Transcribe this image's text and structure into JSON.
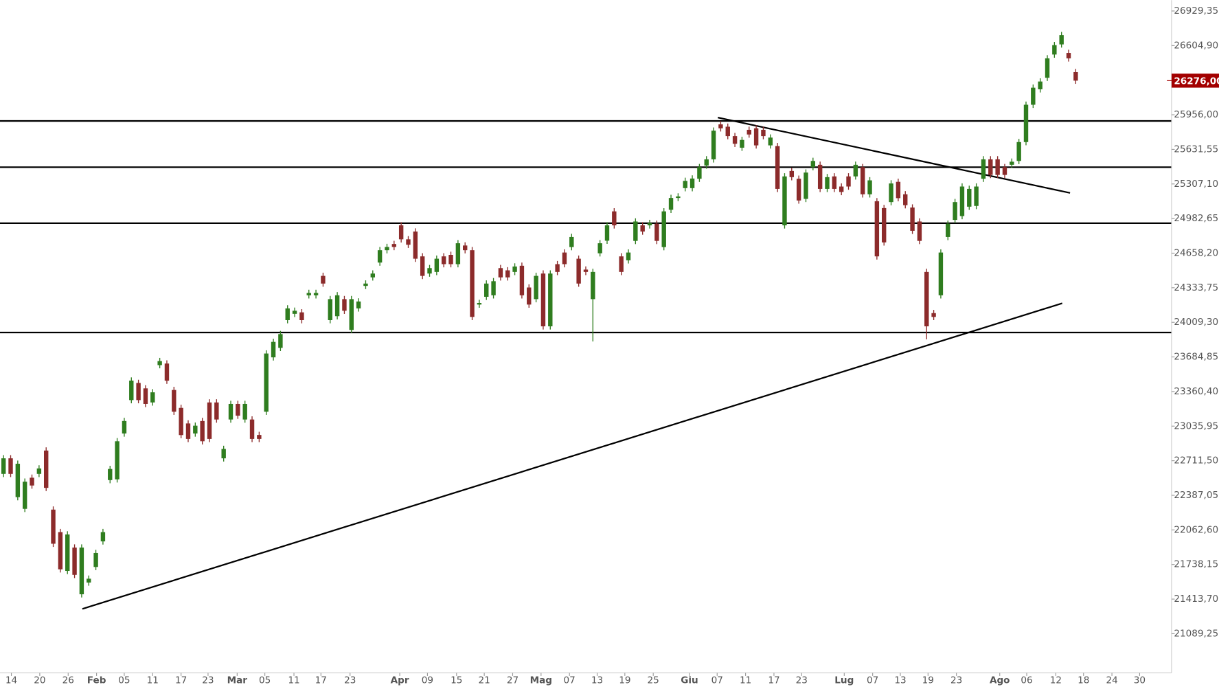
{
  "chart_data": {
    "type": "candlestick",
    "up_color": "#2f7d1f",
    "down_color": "#8c2b2b",
    "line_color": "#000000",
    "xlim": [
      -0.5,
      164.5
    ],
    "ylim": [
      20722,
      27031
    ],
    "xticks": [
      {
        "value": 1.1,
        "label": "14"
      },
      {
        "value": 5.1,
        "label": "20"
      },
      {
        "value": 9.1,
        "label": "26"
      },
      {
        "value": 13.1,
        "label": "Feb"
      },
      {
        "value": 17.0,
        "label": "05"
      },
      {
        "value": 21.0,
        "label": "11"
      },
      {
        "value": 25.0,
        "label": "17"
      },
      {
        "value": 28.8,
        "label": "23"
      },
      {
        "value": 32.9,
        "label": "Mar"
      },
      {
        "value": 36.8,
        "label": "05"
      },
      {
        "value": 40.9,
        "label": "11"
      },
      {
        "value": 44.7,
        "label": "17"
      },
      {
        "value": 48.8,
        "label": "23"
      },
      {
        "value": 55.8,
        "label": "Apr"
      },
      {
        "value": 59.7,
        "label": "09"
      },
      {
        "value": 63.8,
        "label": "15"
      },
      {
        "value": 67.7,
        "label": "21"
      },
      {
        "value": 71.7,
        "label": "27"
      },
      {
        "value": 75.7,
        "label": "Mag"
      },
      {
        "value": 79.7,
        "label": "07"
      },
      {
        "value": 83.6,
        "label": "13"
      },
      {
        "value": 87.5,
        "label": "19"
      },
      {
        "value": 91.5,
        "label": "25"
      },
      {
        "value": 96.6,
        "label": "Giu"
      },
      {
        "value": 100.5,
        "label": "07"
      },
      {
        "value": 104.5,
        "label": "11"
      },
      {
        "value": 108.5,
        "label": "17"
      },
      {
        "value": 112.4,
        "label": "23"
      },
      {
        "value": 118.4,
        "label": "Lug"
      },
      {
        "value": 122.4,
        "label": "07"
      },
      {
        "value": 126.3,
        "label": "13"
      },
      {
        "value": 130.2,
        "label": "19"
      },
      {
        "value": 134.2,
        "label": "23"
      },
      {
        "value": 140.3,
        "label": "Ago"
      },
      {
        "value": 144.1,
        "label": "06"
      },
      {
        "value": 148.2,
        "label": "12"
      },
      {
        "value": 152.1,
        "label": "18"
      },
      {
        "value": 156.1,
        "label": "24"
      },
      {
        "value": 160.0,
        "label": "30"
      }
    ],
    "yticks": [
      {
        "value": 26929.35,
        "label": "26929,35"
      },
      {
        "value": 26604.9,
        "label": "26604,90"
      },
      {
        "value": 25956,
        "label": "25956,00"
      },
      {
        "value": 25631.55,
        "label": "25631,55"
      },
      {
        "value": 25307.1,
        "label": "25307,10"
      },
      {
        "value": 24982.65,
        "label": "24982,65"
      },
      {
        "value": 24658.2,
        "label": "24658,20"
      },
      {
        "value": 24333.75,
        "label": "24333,75"
      },
      {
        "value": 24009.3,
        "label": "24009,30"
      },
      {
        "value": 23684.85,
        "label": "23684,85"
      },
      {
        "value": 23360.4,
        "label": "23360,40"
      },
      {
        "value": 23035.95,
        "label": "23035,95"
      },
      {
        "value": 22711.5,
        "label": "22711,50"
      },
      {
        "value": 22387.05,
        "label": "22387,05"
      },
      {
        "value": 22062.6,
        "label": "22062,60"
      },
      {
        "value": 21738.15,
        "label": "21738,15"
      },
      {
        "value": 21413.7,
        "label": "21413,70"
      },
      {
        "value": 21089.25,
        "label": "21089,25"
      }
    ],
    "last_price": {
      "value": 26276,
      "label": "26276,00",
      "color": "#a30000"
    },
    "hlines": [
      25898,
      25464,
      24939,
      23914
    ],
    "trendlines": [
      {
        "x": [
          11.1,
          149.1
        ],
        "y": [
          21322,
          24188
        ]
      },
      {
        "x": [
          100.6,
          150.2
        ],
        "y": [
          25930,
          25223
        ]
      }
    ],
    "open": [
      22588,
      22734,
      22370,
      22260,
      22552,
      22588,
      22807,
      22253,
      22042,
      21678,
      21897,
      21459,
      21569,
      21715,
      21955,
      22530,
      22537,
      22967,
      23280,
      23441,
      23390,
      23258,
      23608,
      23623,
      23375,
      23207,
      23061,
      22967,
      23084,
      23258,
      23258,
      22734,
      23098,
      23244,
      23098,
      23098,
      22953,
      23171,
      23681,
      23770,
      24030,
      24089,
      24103,
      24263,
      24263,
      24445,
      24030,
      24067,
      24227,
      23938,
      24140,
      24351,
      24431,
      24570,
      24686,
      24744,
      24919,
      24788,
      24861,
      24628,
      24467,
      24482,
      24628,
      24642,
      24555,
      24730,
      24686,
      24176,
      24249,
      24263,
      24518,
      24497,
      24482,
      24540,
      24336,
      24227,
      24467,
      23972,
      24555,
      24664,
      24715,
      24606,
      24504,
      24227,
      24657,
      24775,
      25050,
      24628,
      24591,
      24773,
      24919,
      24919,
      24934,
      24715,
      25065,
      25176,
      25268,
      25268,
      25356,
      25480,
      25538,
      25866,
      25844,
      25756,
      25647,
      25815,
      25829,
      25815,
      25669,
      25662,
      24919,
      25429,
      25356,
      25167,
      25465,
      25487,
      25261,
      25378,
      25283,
      25378,
      25378,
      25465,
      25210,
      25145,
      25081,
      25137,
      25327,
      25210,
      25086,
      24955,
      24482,
      24096,
      24263,
      24810,
      24970,
      25006,
      25094,
      25101,
      25356,
      25538,
      25538,
      25465,
      25487,
      25523,
      25700,
      26050,
      26195,
      26303,
      26521,
      26616,
      26536,
      26356
    ],
    "high": [
      22764,
      22764,
      22713,
      22545,
      22582,
      22669,
      22837,
      22283,
      22072,
      22050,
      21927,
      21927,
      21635,
      21876,
      22072,
      22664,
      22924,
      23114,
      23493,
      23471,
      23420,
      23383,
      23676,
      23653,
      23405,
      23237,
      23091,
      23070,
      23114,
      23288,
      23288,
      22852,
      23274,
      23274,
      23274,
      23128,
      22983,
      23747,
      23856,
      23929,
      24170,
      24148,
      24133,
      24315,
      24315,
      24475,
      24257,
      24293,
      24257,
      24257,
      24235,
      24403,
      24497,
      24716,
      24746,
      24774,
      24949,
      24818,
      24891,
      24658,
      24548,
      24636,
      24658,
      24672,
      24781,
      24760,
      24716,
      24221,
      24403,
      24425,
      24548,
      24527,
      24563,
      24570,
      24366,
      24475,
      24497,
      24497,
      24585,
      24694,
      24840,
      24636,
      24534,
      24512,
      24781,
      24949,
      25080,
      24658,
      24694,
      24985,
      24949,
      24971,
      24964,
      25080,
      25206,
      25220,
      25366,
      25388,
      25495,
      25568,
      25837,
      25896,
      25874,
      25786,
      25750,
      25845,
      25859,
      25845,
      25772,
      25692,
      25408,
      25459,
      25386,
      25444,
      25553,
      25517,
      25401,
      25408,
      25313,
      25408,
      25517,
      25495,
      25371,
      25175,
      25111,
      25342,
      25357,
      25240,
      25116,
      24985,
      24512,
      24126,
      24694,
      24964,
      25167,
      25313,
      25291,
      25313,
      25568,
      25568,
      25568,
      25495,
      25546,
      25730,
      26080,
      26240,
      26298,
      26515,
      26639,
      26733,
      26566,
      26386
    ],
    "low": [
      22558,
      22558,
      22340,
      22230,
      22449,
      22558,
      22427,
      21903,
      21663,
      21648,
      21611,
      21429,
      21539,
      21685,
      21925,
      22500,
      22507,
      22937,
      23250,
      23250,
      23214,
      23228,
      23578,
      23432,
      23141,
      22922,
      22886,
      22937,
      22864,
      22886,
      23068,
      22704,
      23068,
      23104,
      23068,
      22886,
      22886,
      23141,
      23651,
      23740,
      24000,
      24059,
      24000,
      24233,
      24233,
      24343,
      24000,
      24037,
      24088,
      23908,
      24110,
      24321,
      24401,
      24540,
      24656,
      24686,
      24758,
      24707,
      24576,
      24415,
      24437,
      24452,
      24525,
      24525,
      24525,
      24656,
      24030,
      24146,
      24219,
      24233,
      24401,
      24401,
      24452,
      24233,
      24146,
      24197,
      23942,
      23942,
      24452,
      24525,
      24685,
      24343,
      24452,
      23830,
      24627,
      24745,
      24889,
      24452,
      24561,
      24743,
      24831,
      24889,
      24743,
      24685,
      25035,
      25146,
      25238,
      25238,
      25326,
      25450,
      25508,
      25799,
      25726,
      25654,
      25617,
      25741,
      25639,
      25726,
      25639,
      25231,
      24889,
      25341,
      25122,
      25137,
      25435,
      25231,
      25231,
      25231,
      25202,
      25253,
      25348,
      25180,
      25180,
      24598,
      24729,
      25107,
      25144,
      25078,
      24838,
      24743,
      23850,
      24030,
      24233,
      24780,
      24940,
      24976,
      25064,
      25071,
      25326,
      25362,
      25362,
      25362,
      25457,
      25493,
      25670,
      26020,
      26165,
      26273,
      26491,
      26586,
      26455,
      26246
    ],
    "close": [
      22734,
      22588,
      22683,
      22515,
      22479,
      22639,
      22457,
      21933,
      21693,
      22020,
      21641,
      21897,
      21605,
      21846,
      22042,
      22634,
      22894,
      23084,
      23463,
      23280,
      23244,
      23353,
      23646,
      23462,
      23171,
      22952,
      22916,
      23040,
      22894,
      22916,
      23098,
      22822,
      23244,
      23134,
      23244,
      22916,
      22916,
      23717,
      23826,
      23899,
      24140,
      24118,
      24030,
      24285,
      24285,
      24373,
      24227,
      24263,
      24118,
      24227,
      24205,
      24373,
      24467,
      24686,
      24716,
      24716,
      24788,
      24737,
      24606,
      24445,
      24518,
      24606,
      24555,
      24555,
      24751,
      24686,
      24060,
      24191,
      24373,
      24395,
      24431,
      24431,
      24533,
      24263,
      24176,
      24445,
      23972,
      24467,
      24482,
      24555,
      24810,
      24373,
      24482,
      24482,
      24751,
      24919,
      24919,
      24482,
      24664,
      24955,
      24861,
      24941,
      24773,
      25050,
      25176,
      25190,
      25336,
      25358,
      25465,
      25538,
      25807,
      25829,
      25756,
      25684,
      25720,
      25771,
      25669,
      25756,
      25742,
      25261,
      25378,
      25371,
      25152,
      25414,
      25523,
      25261,
      25371,
      25261,
      25232,
      25283,
      25487,
      25210,
      25341,
      24628,
      24759,
      25312,
      25174,
      25108,
      24868,
      24773,
      23972,
      24060,
      24664,
      24934,
      25137,
      25283,
      25261,
      25283,
      25538,
      25392,
      25392,
      25392,
      25516,
      25700,
      26050,
      26210,
      26268,
      26485,
      26609,
      26703,
      26485,
      26276
    ]
  }
}
